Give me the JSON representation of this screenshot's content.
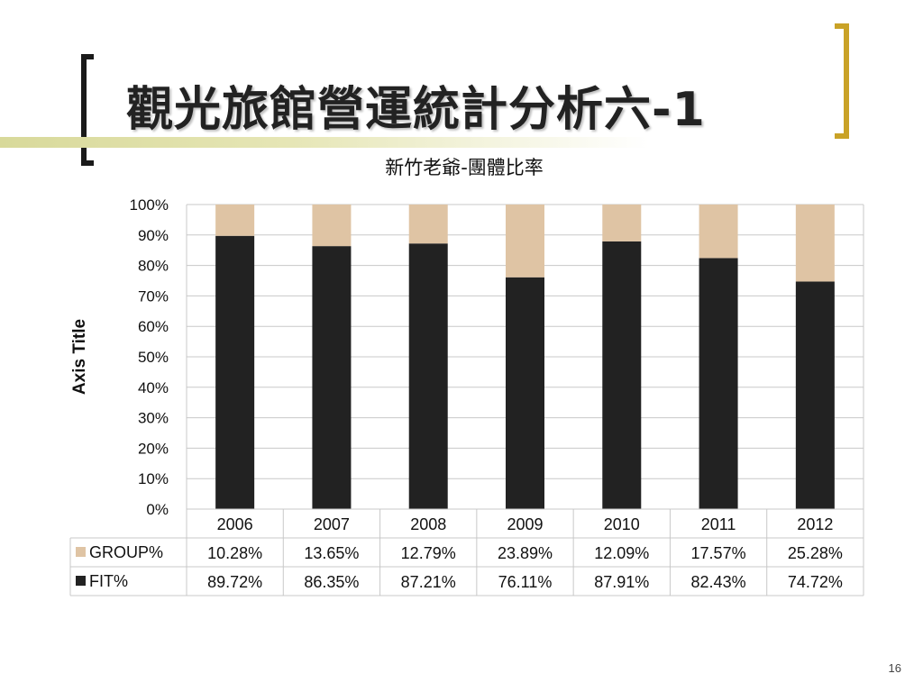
{
  "slide": {
    "title": "觀光旅館營運統計分析六-1",
    "page_number": "16"
  },
  "colors": {
    "group": "#dfc4a4",
    "fit": "#222222",
    "grid": "#c8c8c8",
    "bracket_left": "#1a1a1a",
    "bracket_right": "#c9a227"
  },
  "chart_data": {
    "type": "bar",
    "stacked": true,
    "title": "新竹老爺-團體比率",
    "ylabel": "Axis Title",
    "ylim": [
      0,
      100
    ],
    "yticks": [
      "0%",
      "10%",
      "20%",
      "30%",
      "40%",
      "50%",
      "60%",
      "70%",
      "80%",
      "90%",
      "100%"
    ],
    "categories": [
      "2006",
      "2007",
      "2008",
      "2009",
      "2010",
      "2011",
      "2012"
    ],
    "series": [
      {
        "name": "GROUP%",
        "values": [
          10.28,
          13.65,
          12.79,
          23.89,
          12.09,
          17.57,
          25.28
        ],
        "labels": [
          "10.28%",
          "13.65%",
          "12.79%",
          "23.89%",
          "12.09%",
          "17.57%",
          "25.28%"
        ]
      },
      {
        "name": "FIT%",
        "values": [
          89.72,
          86.35,
          87.21,
          76.11,
          87.91,
          82.43,
          74.72
        ],
        "labels": [
          "89.72%",
          "86.35%",
          "87.21%",
          "76.11%",
          "87.91%",
          "82.43%",
          "74.72%"
        ]
      }
    ],
    "grid": true,
    "legend": "data-table"
  }
}
